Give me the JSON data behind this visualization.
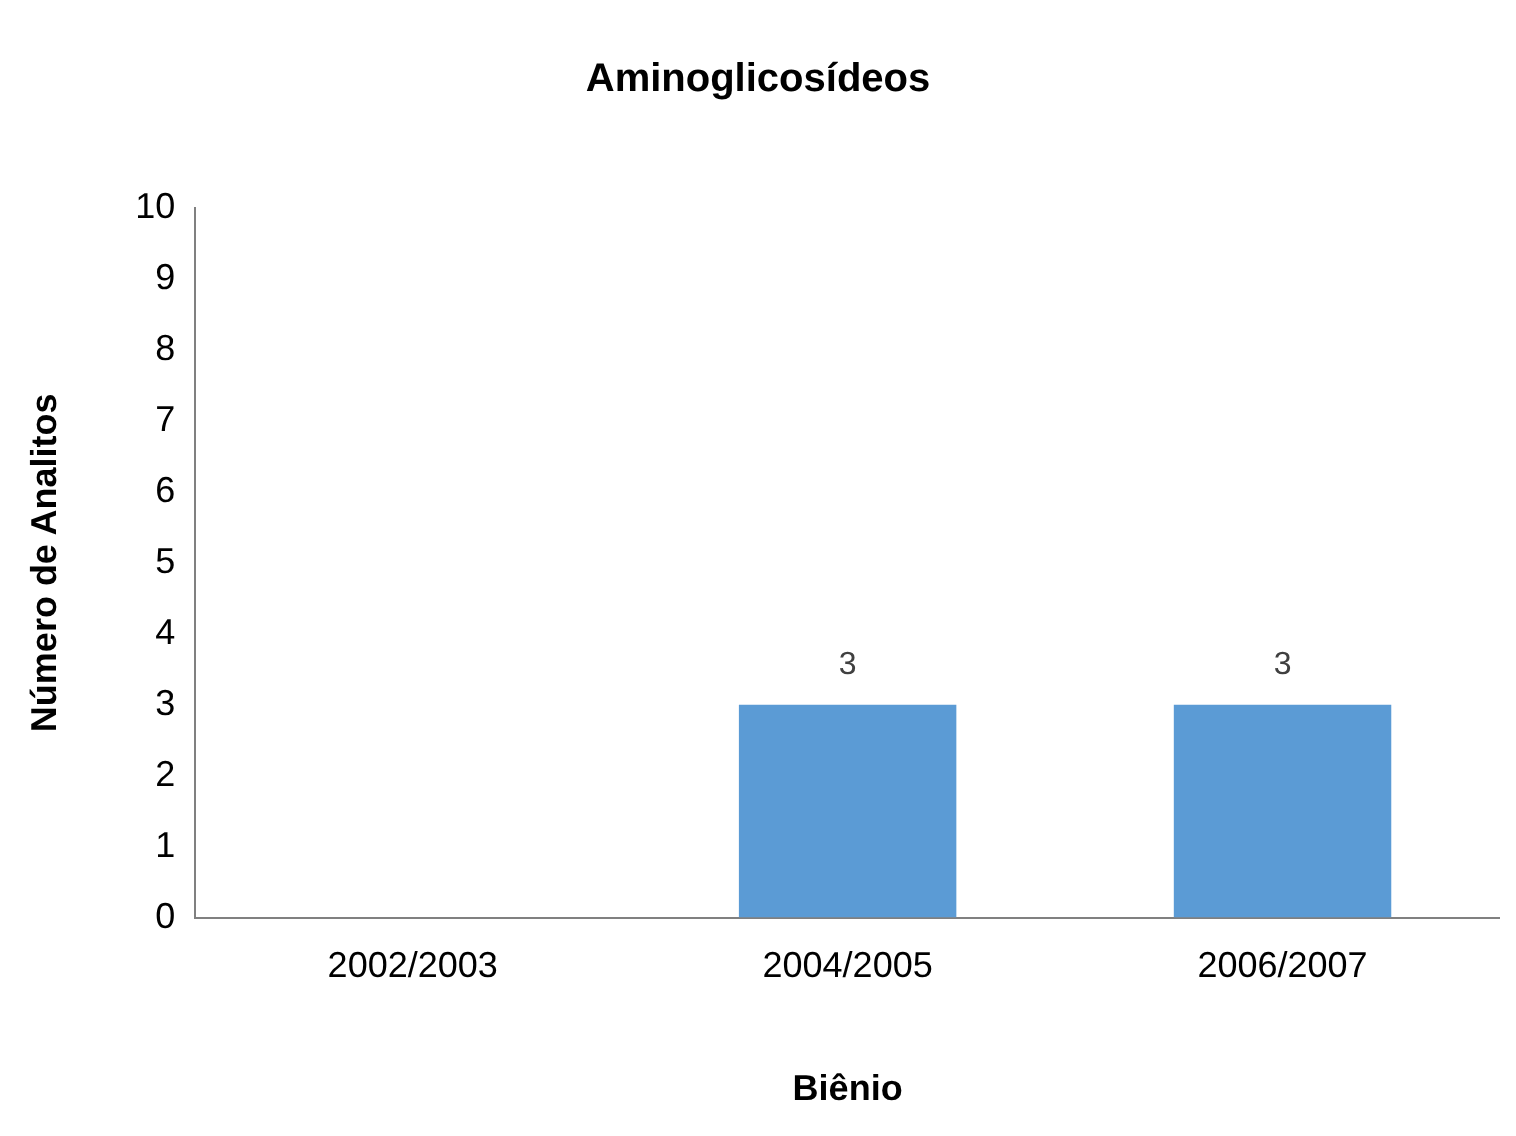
{
  "chart_data": {
    "type": "bar",
    "title": "Aminoglicosídeos",
    "xlabel": "Biênio",
    "ylabel": "Número de Analitos",
    "categories": [
      "2002/2003",
      "2004/2005",
      "2006/2007"
    ],
    "values": [
      0,
      3,
      3
    ],
    "color": "#5b9bd5",
    "value_labels": [
      null,
      "3",
      "3"
    ],
    "ylim": [
      0,
      10
    ],
    "yticks": [
      0,
      1,
      2,
      3,
      4,
      5,
      6,
      7,
      8,
      9,
      10
    ],
    "grid": false,
    "legend": false
  }
}
